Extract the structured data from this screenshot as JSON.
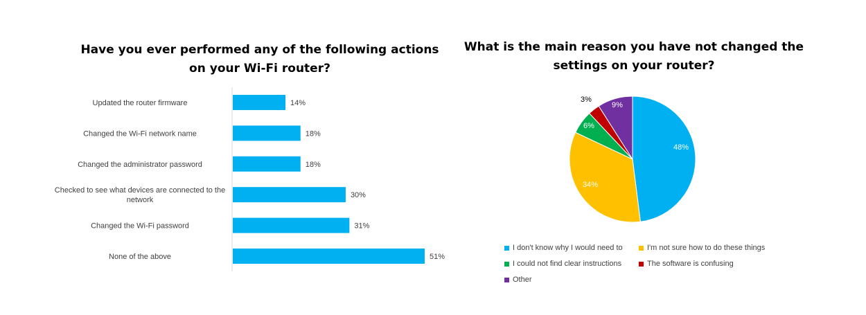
{
  "chart_data": [
    {
      "type": "bar",
      "orientation": "horizontal",
      "title": "Have you ever performed any of the following actions\non your Wi-Fi router?",
      "categories": [
        "Updated the router firmware",
        "Changed the Wi-Fi network name",
        "Changed the administrator password",
        "Checked to see what devices are connected to the network",
        "Changed the Wi-Fi password",
        "None of the above"
      ],
      "values": [
        14,
        18,
        18,
        30,
        31,
        51
      ],
      "value_labels": [
        "14%",
        "18%",
        "18%",
        "30%",
        "31%",
        "51%"
      ],
      "xlim": [
        0,
        60
      ],
      "grid": false,
      "color": "#00B0F0"
    },
    {
      "type": "pie",
      "title": "What is the main reason you have not changed the\nsettings on your router?",
      "labels": [
        "I don't know why I would need to",
        "I'm not sure how to do these things",
        "I could not find clear instructions",
        "The software is confusing",
        "Other"
      ],
      "values": [
        48,
        34,
        6,
        3,
        9
      ],
      "value_labels": [
        "48%",
        "34%",
        "6%",
        "3%",
        "9%"
      ],
      "colors": [
        "#00B0F0",
        "#FFC000",
        "#00B050",
        "#C00000",
        "#7030A0"
      ],
      "legend_position": "bottom"
    }
  ]
}
